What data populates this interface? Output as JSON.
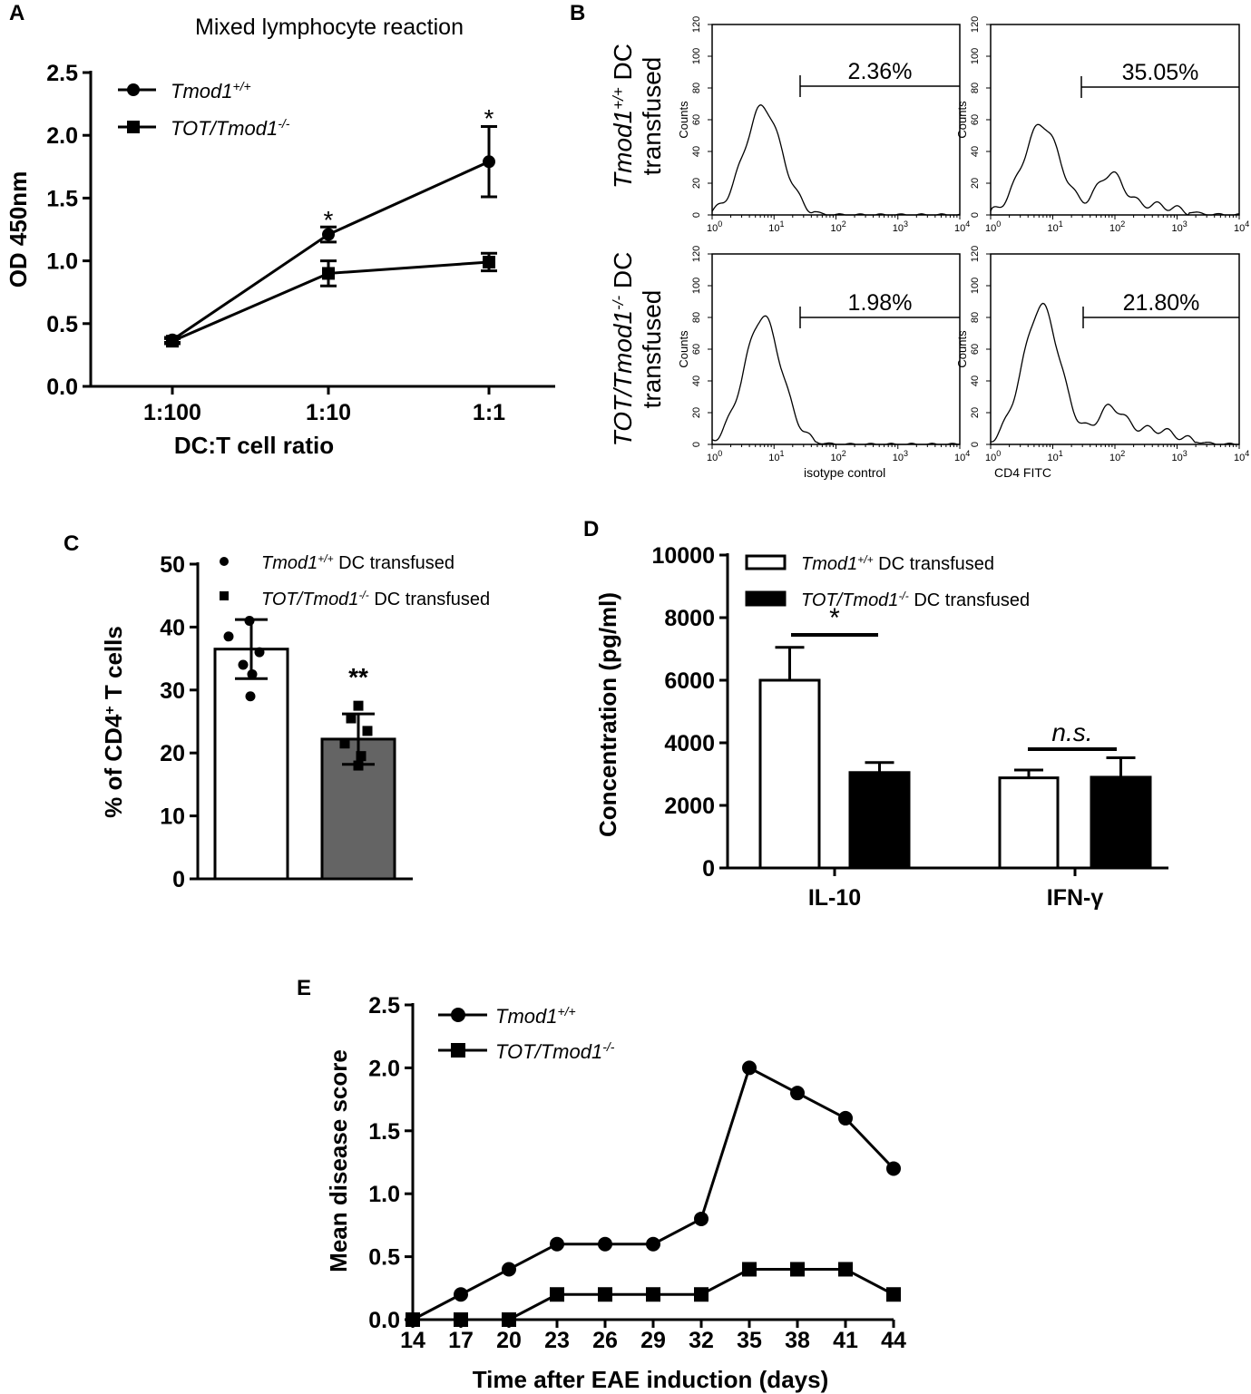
{
  "panels": [
    {
      "id": "A",
      "panel_label": "A",
      "chart_data": {
        "type": "line",
        "title": "Mixed lymphocyte reaction",
        "xlabel": "DC:T cell ratio",
        "ylabel": "OD 450nm",
        "categories": [
          "1:100",
          "1:10",
          "1:1"
        ],
        "ylim": [
          0,
          2.5
        ],
        "yticks": [
          "0.0",
          "0.5",
          "1.0",
          "1.5",
          "2.0",
          "2.5"
        ],
        "series": [
          {
            "name": "Tmod1",
            "name_sup": "+/+",
            "marker": "circle",
            "values": [
              0.37,
              1.21,
              1.79
            ],
            "errors": [
              0.02,
              0.06,
              0.28
            ]
          },
          {
            "name": "TOT/Tmod1",
            "name_sup": "-/-",
            "marker": "square",
            "values": [
              0.36,
              0.9,
              0.99
            ],
            "errors": [
              0.02,
              0.1,
              0.07
            ]
          }
        ],
        "annotations": [
          {
            "category": "1:10",
            "text": "*",
            "y": 1.33
          },
          {
            "category": "1:1",
            "text": "*",
            "y": 2.14
          }
        ]
      }
    },
    {
      "id": "B",
      "panel_label": "B",
      "chart_data": {
        "type": "histogram",
        "row_labels": [
          {
            "line1_main": "Tmod1",
            "line1_sup": "+/+",
            "line1_tail": " DC",
            "line2": "transfused"
          },
          {
            "line1_main": "TOT/Tmod1",
            "line1_sup": "-/-",
            "line1_tail": " DC",
            "line2": "transfused"
          }
        ],
        "y_axis_label": "Counts",
        "yticks": [
          "0",
          "20",
          "40",
          "60",
          "80",
          "100",
          "120"
        ],
        "xticks": [
          {
            "base": "10",
            "exp": "0"
          },
          {
            "base": "10",
            "exp": "1"
          },
          {
            "base": "10",
            "exp": "2"
          },
          {
            "base": "10",
            "exp": "3"
          },
          {
            "base": "10",
            "exp": "4"
          }
        ],
        "x_axis_labels": [
          "isotype control",
          "CD4 FITC"
        ],
        "gate_percentages": [
          [
            "2.36%",
            "35.05%"
          ],
          [
            "1.98%",
            "21.80%"
          ]
        ],
        "peak_heights": [
          [
            61,
            51
          ],
          [
            72,
            78
          ]
        ]
      }
    },
    {
      "id": "C",
      "panel_label": "C",
      "chart_data": {
        "type": "bar",
        "ylabel": "% of CD4+ T cells",
        "ylabel_main": "% of CD4",
        "ylabel_sup": "+",
        "ylabel_tail": " T cells",
        "ylim": [
          0,
          50
        ],
        "yticks": [
          "0",
          "10",
          "20",
          "30",
          "40",
          "50"
        ],
        "series": [
          {
            "name": "Tmod1",
            "name_sup": "+/+",
            "name_tail": " DC transfused",
            "value": 36.5,
            "error": 4.7,
            "color": "#ffffff",
            "marker": "circle",
            "points": [
              41,
              38.5,
              36,
              34,
              32.5,
              29
            ]
          },
          {
            "name": "TOT/Tmod1",
            "name_sup": "-/-",
            "name_tail": " DC transfused",
            "value": 22.2,
            "error": 4.0,
            "color": "#646464",
            "marker": "square",
            "points": [
              27.5,
              25.5,
              23.5,
              21.5,
              19.5,
              18
            ]
          }
        ],
        "annotation": "**"
      }
    },
    {
      "id": "D",
      "panel_label": "D",
      "chart_data": {
        "type": "bar",
        "ylabel": "Concentration (pg/ml)",
        "ylim": [
          0,
          10000
        ],
        "yticks": [
          "0",
          "2000",
          "4000",
          "6000",
          "8000",
          "10000"
        ],
        "categories": [
          "IL-10",
          "IFN-γ"
        ],
        "series": [
          {
            "name": "Tmod1",
            "name_sup": "+/+",
            "name_tail": " DC transfused",
            "color": "#ffffff",
            "values": [
              6000,
              2880
            ],
            "errors": [
              1050,
              250
            ]
          },
          {
            "name": "TOT/Tmod1",
            "name_sup": "-/-",
            "name_tail": " DC transfused",
            "color": "#000000",
            "values": [
              3050,
              2900
            ],
            "errors": [
              320,
              620
            ]
          }
        ],
        "significance": [
          {
            "category": "IL-10",
            "text": "*",
            "italic": false
          },
          {
            "category": "IFN-γ",
            "text": "n.s.",
            "italic": true
          }
        ]
      }
    },
    {
      "id": "E",
      "panel_label": "E",
      "chart_data": {
        "type": "line",
        "xlabel": "Time after EAE induction (days)",
        "ylabel": "Mean disease score",
        "x": [
          14,
          17,
          20,
          23,
          26,
          29,
          32,
          35,
          38,
          41,
          44
        ],
        "xticks": [
          "14",
          "17",
          "20",
          "23",
          "26",
          "29",
          "32",
          "35",
          "38",
          "41",
          "44"
        ],
        "ylim": [
          0,
          2.5
        ],
        "yticks": [
          "0.0",
          "0.5",
          "1.0",
          "1.5",
          "2.0",
          "2.5"
        ],
        "series": [
          {
            "name": "Tmod1",
            "name_sup": "+/+",
            "marker": "circle",
            "values": [
              0,
              0.2,
              0.4,
              0.6,
              0.6,
              0.6,
              0.8,
              2.0,
              1.8,
              1.6,
              1.2
            ]
          },
          {
            "name": "TOT/Tmod1",
            "name_sup": "-/-",
            "marker": "square",
            "values": [
              0,
              0,
              0,
              0.2,
              0.2,
              0.2,
              0.2,
              0.4,
              0.4,
              0.4,
              0.2
            ]
          }
        ]
      }
    }
  ]
}
